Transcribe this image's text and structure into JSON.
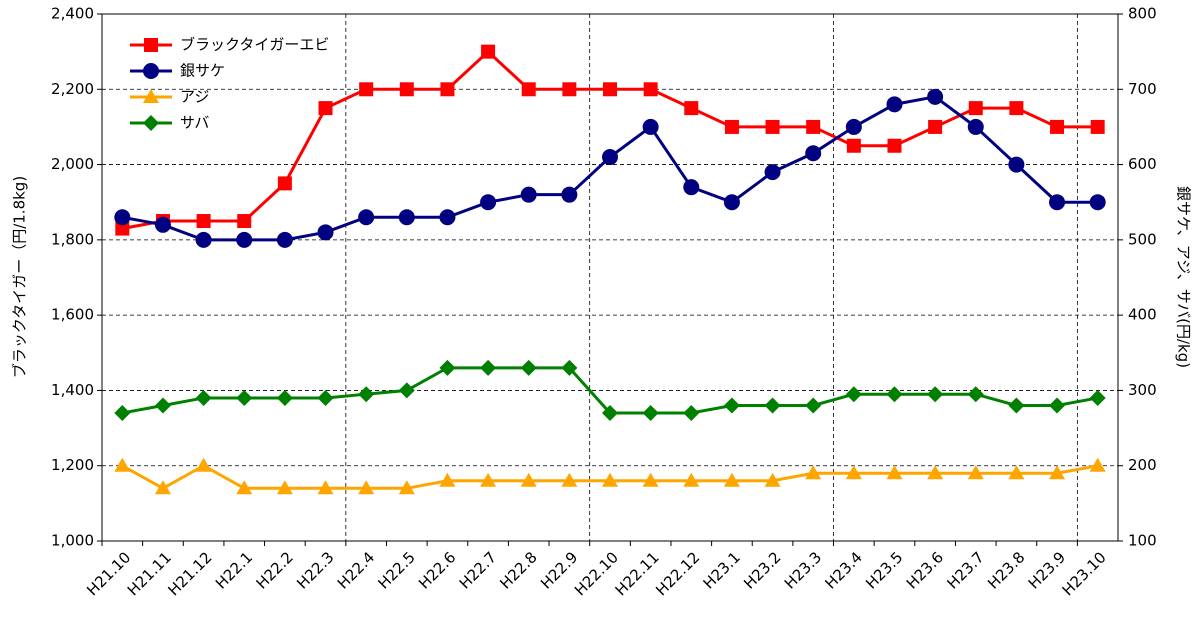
{
  "chart_data": {
    "type": "line",
    "y_label": "ブラックタイガー（円/1.8kg)",
    "y2_label": "銀サケ、アジ、サバ(円/kg)",
    "categories": [
      "H21.10",
      "H21.11",
      "H21.12",
      "H22.1",
      "H22.2",
      "H22.3",
      "H22.4",
      "H22.5",
      "H22.6",
      "H22.7",
      "H22.8",
      "H22.9",
      "H22.10",
      "H22.11",
      "H22.12",
      "H23.1",
      "H23.2",
      "H23.3",
      "H23.4",
      "H23.5",
      "H23.6",
      "H23.7",
      "H23.8",
      "H23.9",
      "H23.10"
    ],
    "series": [
      {
        "name": "ブラックタイガーエビ",
        "color": "#ff0000",
        "marker": "square",
        "axis": "y",
        "values": [
          1830,
          1850,
          1850,
          1850,
          1950,
          2150,
          2200,
          2200,
          2200,
          2300,
          2200,
          2200,
          2200,
          2200,
          2150,
          2100,
          2100,
          2100,
          2050,
          2050,
          2100,
          2150,
          2150,
          2100,
          2100
        ]
      },
      {
        "name": "銀サケ",
        "color": "#000080",
        "marker": "circle",
        "axis": "y2",
        "values": [
          530,
          520,
          500,
          500,
          500,
          510,
          530,
          530,
          530,
          550,
          560,
          560,
          610,
          650,
          570,
          550,
          590,
          615,
          650,
          680,
          690,
          650,
          600,
          550,
          550
        ]
      },
      {
        "name": "アジ",
        "color": "#ffa500",
        "marker": "triangle",
        "axis": "y2",
        "values": [
          200,
          170,
          200,
          170,
          170,
          170,
          170,
          170,
          180,
          180,
          180,
          180,
          180,
          180,
          180,
          180,
          180,
          190,
          190,
          190,
          190,
          190,
          190,
          190,
          200
        ]
      },
      {
        "name": "サバ",
        "color": "#008000",
        "marker": "diamond",
        "axis": "y2",
        "values": [
          270,
          280,
          290,
          290,
          290,
          290,
          295,
          300,
          330,
          330,
          330,
          330,
          270,
          270,
          270,
          280,
          280,
          280,
          295,
          295,
          295,
          295,
          280,
          280,
          290
        ]
      }
    ],
    "ylim": [
      1000,
      2400
    ],
    "yticks": [
      {
        "value": 1000,
        "label": "1,000"
      },
      {
        "value": 1200,
        "label": "1,200"
      },
      {
        "value": 1400,
        "label": "1,400"
      },
      {
        "value": 1600,
        "label": "1,600"
      },
      {
        "value": 1800,
        "label": "1,800"
      },
      {
        "value": 2000,
        "label": "2,000"
      },
      {
        "value": 2200,
        "label": "2,200"
      },
      {
        "value": 2400,
        "label": "2,400"
      }
    ],
    "y2lim": [
      100,
      800
    ],
    "y2ticks": [
      100,
      200,
      300,
      400,
      500,
      600,
      700,
      800
    ],
    "grid": true,
    "legend": "top-left"
  }
}
